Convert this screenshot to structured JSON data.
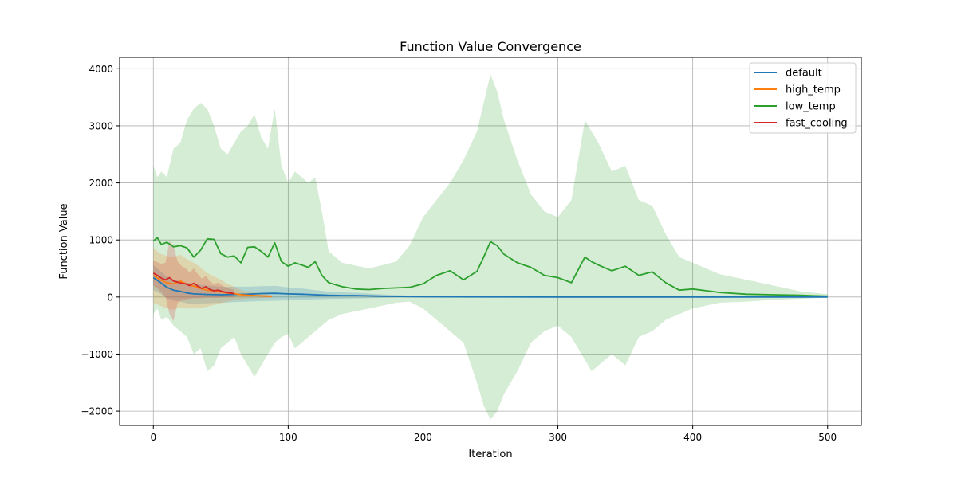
{
  "chart_data": {
    "type": "line",
    "title": "Function Value Convergence",
    "xlabel": "Iteration",
    "ylabel": "Function Value",
    "xlim": [
      -25,
      525
    ],
    "ylim": [
      -2250,
      4200
    ],
    "xticks": [
      0,
      100,
      200,
      300,
      400,
      500
    ],
    "xtick_labels": [
      "0",
      "100",
      "200",
      "300",
      "400",
      "500"
    ],
    "yticks": [
      -2000,
      -1000,
      0,
      1000,
      2000,
      3000,
      4000
    ],
    "ytick_labels": [
      "−2000",
      "−1000",
      "0",
      "1000",
      "2000",
      "3000",
      "4000"
    ],
    "grid": true,
    "legend_position": "top-right",
    "series": [
      {
        "name": "default",
        "color": "#1f77b4",
        "x": [
          0,
          5,
          10,
          15,
          20,
          25,
          30,
          40,
          50,
          60,
          70,
          80,
          90,
          100,
          110,
          120,
          130,
          140,
          150,
          160,
          170,
          200,
          250,
          300,
          350,
          400,
          450,
          500
        ],
        "y": [
          340,
          260,
          170,
          120,
          100,
          70,
          55,
          45,
          40,
          45,
          50,
          60,
          65,
          55,
          50,
          40,
          30,
          25,
          25,
          20,
          15,
          5,
          2,
          1,
          1,
          0,
          0,
          0
        ],
        "band_lower": [
          120,
          60,
          -20,
          -60,
          -80,
          -110,
          -120,
          -110,
          -100,
          -90,
          -80,
          -70,
          -65,
          -60,
          -50,
          -40,
          -35,
          -30,
          -25,
          -20,
          -15,
          -5,
          -2,
          -1,
          -1,
          0,
          0,
          0
        ],
        "band_upper": [
          560,
          460,
          360,
          300,
          280,
          250,
          230,
          200,
          180,
          180,
          180,
          190,
          195,
          170,
          150,
          120,
          95,
          80,
          75,
          60,
          45,
          15,
          6,
          3,
          3,
          0,
          0,
          0
        ]
      },
      {
        "name": "high_temp",
        "color": "#ff7f0e",
        "x": [
          0,
          5,
          10,
          15,
          20,
          25,
          30,
          35,
          40,
          45,
          50,
          55,
          60,
          65,
          70,
          75,
          80,
          85,
          88
        ],
        "y": [
          380,
          300,
          250,
          230,
          280,
          220,
          190,
          150,
          120,
          110,
          90,
          70,
          60,
          40,
          30,
          25,
          20,
          15,
          10
        ],
        "band_lower": [
          -100,
          -150,
          -200,
          -220,
          -180,
          -200,
          -200,
          -190,
          -170,
          -140,
          -110,
          -80,
          -60,
          -40,
          -30,
          -25,
          -20,
          -15,
          -10
        ],
        "band_upper": [
          860,
          760,
          720,
          700,
          740,
          660,
          600,
          520,
          420,
          360,
          300,
          230,
          180,
          120,
          90,
          75,
          60,
          45,
          30
        ]
      },
      {
        "name": "low_temp",
        "color": "#2ca02c",
        "x": [
          0,
          3,
          6,
          10,
          15,
          20,
          25,
          30,
          35,
          40,
          45,
          50,
          55,
          60,
          65,
          70,
          75,
          80,
          85,
          90,
          95,
          100,
          105,
          110,
          115,
          120,
          125,
          130,
          140,
          150,
          160,
          170,
          180,
          190,
          200,
          210,
          220,
          230,
          240,
          245,
          250,
          255,
          260,
          270,
          280,
          290,
          300,
          310,
          320,
          325,
          330,
          340,
          350,
          360,
          370,
          380,
          390,
          400,
          420,
          440,
          460,
          480,
          500
        ],
        "y": [
          980,
          1040,
          920,
          960,
          880,
          900,
          860,
          700,
          820,
          1020,
          1010,
          760,
          700,
          720,
          600,
          870,
          880,
          800,
          700,
          950,
          620,
          540,
          600,
          560,
          520,
          620,
          380,
          250,
          180,
          140,
          130,
          150,
          160,
          170,
          230,
          380,
          460,
          300,
          450,
          700,
          970,
          900,
          750,
          600,
          520,
          380,
          340,
          250,
          700,
          620,
          560,
          460,
          540,
          380,
          440,
          250,
          120,
          140,
          80,
          50,
          40,
          30,
          15
        ],
        "band_lower": [
          -300,
          -200,
          -400,
          -350,
          -500,
          -600,
          -700,
          -1000,
          -900,
          -1300,
          -1200,
          -900,
          -800,
          -700,
          -1000,
          -1200,
          -1400,
          -1200,
          -1000,
          -800,
          -700,
          -650,
          -900,
          -800,
          -700,
          -600,
          -500,
          -400,
          -300,
          -250,
          -200,
          -150,
          -100,
          -80,
          -200,
          -400,
          -600,
          -800,
          -1500,
          -1900,
          -2150,
          -2000,
          -1700,
          -1300,
          -800,
          -600,
          -500,
          -700,
          -1100,
          -1300,
          -1200,
          -1000,
          -1200,
          -700,
          -600,
          -400,
          -300,
          -200,
          -100,
          -80,
          -50,
          -30,
          -10
        ],
        "band_upper": [
          2300,
          2100,
          2200,
          2100,
          2600,
          2700,
          3100,
          3300,
          3400,
          3300,
          3000,
          2600,
          2500,
          2700,
          2900,
          3000,
          3200,
          2800,
          2600,
          3300,
          2300,
          2000,
          2200,
          2100,
          2000,
          2100,
          1500,
          800,
          600,
          550,
          500,
          560,
          620,
          900,
          1400,
          1700,
          2000,
          2400,
          2900,
          3400,
          3900,
          3600,
          3100,
          2400,
          1800,
          1500,
          1400,
          1700,
          3100,
          2900,
          2700,
          2200,
          2300,
          1700,
          1600,
          1100,
          700,
          600,
          400,
          300,
          200,
          100,
          50
        ]
      },
      {
        "name": "fast_cooling",
        "color": "#d62728",
        "x": [
          0,
          3,
          6,
          9,
          12,
          15,
          18,
          21,
          24,
          27,
          30,
          33,
          36,
          39,
          42,
          45,
          48,
          51,
          54,
          57,
          60
        ],
        "y": [
          420,
          380,
          330,
          300,
          340,
          280,
          260,
          240,
          230,
          200,
          240,
          190,
          150,
          180,
          130,
          110,
          120,
          100,
          80,
          70,
          60
        ],
        "band_lower": [
          200,
          150,
          80,
          0,
          -300,
          -420,
          -100,
          -60,
          -40,
          -30,
          -20,
          -20,
          -20,
          -10,
          -10,
          -10,
          -10,
          -5,
          -5,
          -5,
          -5
        ],
        "band_upper": [
          640,
          610,
          580,
          600,
          980,
          900,
          620,
          540,
          500,
          430,
          500,
          400,
          320,
          370,
          270,
          230,
          250,
          205,
          165,
          145,
          125
        ]
      }
    ]
  }
}
